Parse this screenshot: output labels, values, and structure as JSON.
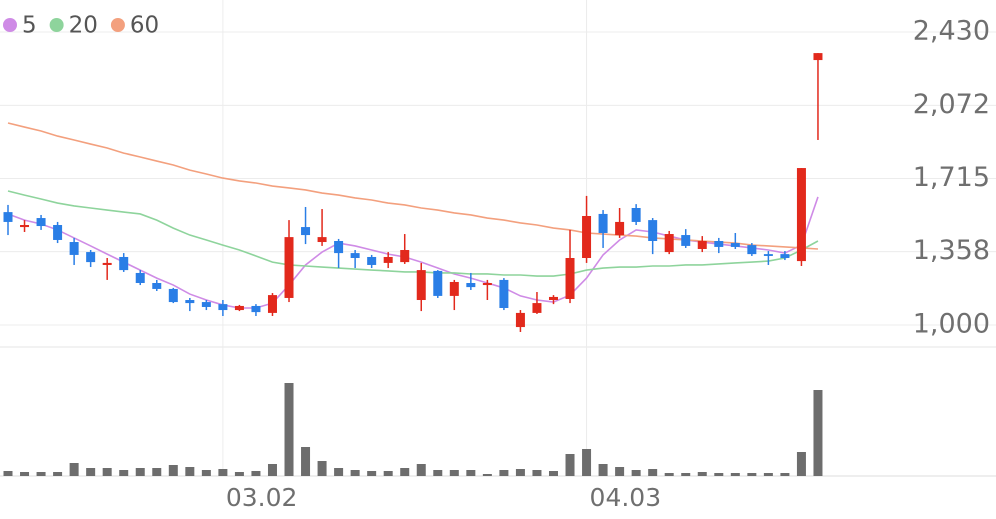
{
  "chart_data": {
    "type": "candlestick",
    "categories": [
      null,
      null,
      null,
      null,
      null,
      null,
      null,
      null,
      null,
      null,
      null,
      null,
      null,
      "03.02",
      null,
      null,
      null,
      null,
      null,
      null,
      null,
      null,
      null,
      null,
      null,
      null,
      null,
      null,
      null,
      null,
      null,
      null,
      null,
      null,
      null,
      "04.03",
      null,
      null,
      null,
      null,
      null,
      null,
      null,
      null,
      null,
      null,
      null,
      null,
      null,
      null
    ],
    "open": [
      1551,
      1478,
      1522,
      1488,
      1405,
      1356,
      1293,
      1332,
      1254,
      1205,
      1176,
      1122,
      1112,
      1102,
      1073,
      1093,
      1059,
      1132,
      1478,
      1405,
      1410,
      1351,
      1332,
      1303,
      1307,
      1122,
      1264,
      1142,
      1205,
      1195,
      1220,
      990,
      1059,
      1122,
      1127,
      1327,
      1542,
      1439,
      1571,
      1512,
      1356,
      1439,
      1371,
      1410,
      1400,
      1390,
      1346,
      1346,
      1312,
      2293
    ],
    "high": [
      1586,
      1512,
      1537,
      1503,
      1425,
      1366,
      1327,
      1351,
      1268,
      1220,
      1181,
      1132,
      1122,
      1122,
      1098,
      1102,
      1156,
      1512,
      1576,
      1566,
      1420,
      1366,
      1342,
      1356,
      1444,
      1303,
      1268,
      1220,
      1254,
      1220,
      1229,
      1073,
      1161,
      1146,
      1464,
      1630,
      1561,
      1571,
      1590,
      1522,
      1459,
      1468,
      1434,
      1425,
      1449,
      1400,
      1361,
      1361,
      1766,
      2327
    ],
    "low": [
      1439,
      1454,
      1464,
      1400,
      1293,
      1283,
      1220,
      1259,
      1195,
      1166,
      1107,
      1068,
      1073,
      1044,
      1068,
      1044,
      1044,
      1112,
      1395,
      1386,
      1278,
      1278,
      1278,
      1278,
      1298,
      1068,
      1132,
      1073,
      1171,
      1122,
      1073,
      966,
      1054,
      1102,
      1107,
      1303,
      1376,
      1425,
      1488,
      1346,
      1346,
      1376,
      1356,
      1351,
      1371,
      1337,
      1293,
      1317,
      1288,
      1903
    ],
    "close": [
      1503,
      1488,
      1483,
      1415,
      1342,
      1307,
      1303,
      1268,
      1205,
      1176,
      1112,
      1107,
      1088,
      1073,
      1093,
      1063,
      1146,
      1429,
      1439,
      1429,
      1351,
      1327,
      1293,
      1332,
      1366,
      1268,
      1142,
      1210,
      1185,
      1205,
      1083,
      1059,
      1107,
      1137,
      1327,
      1532,
      1449,
      1503,
      1503,
      1410,
      1444,
      1386,
      1410,
      1381,
      1381,
      1346,
      1337,
      1327,
      1766,
      2327
    ],
    "up_color": "#e2291c",
    "down_color": "#2a7ee6",
    "moving_averages": [
      {
        "name": "5",
        "color": "#cf8be6",
        "values": [
          1542,
          1512,
          1493,
          1464,
          1425,
          1386,
          1346,
          1307,
          1268,
          1229,
          1195,
          1151,
          1122,
          1098,
          1083,
          1083,
          1107,
          1195,
          1293,
          1356,
          1400,
          1386,
          1366,
          1346,
          1332,
          1307,
          1278,
          1249,
          1229,
          1205,
          1181,
          1142,
          1122,
          1112,
          1146,
          1229,
          1342,
          1415,
          1464,
          1454,
          1434,
          1415,
          1405,
          1395,
          1386,
          1376,
          1366,
          1351,
          1390,
          1625
        ]
      },
      {
        "name": "20",
        "color": "#8ed49c",
        "values": [
          1654,
          1634,
          1615,
          1595,
          1581,
          1571,
          1561,
          1551,
          1542,
          1512,
          1473,
          1439,
          1415,
          1390,
          1366,
          1337,
          1307,
          1293,
          1288,
          1283,
          1278,
          1273,
          1268,
          1264,
          1259,
          1259,
          1254,
          1254,
          1249,
          1249,
          1244,
          1244,
          1239,
          1239,
          1249,
          1268,
          1278,
          1283,
          1283,
          1288,
          1288,
          1293,
          1293,
          1298,
          1303,
          1307,
          1312,
          1327,
          1366,
          1410
        ]
      },
      {
        "name": "60",
        "color": "#f3a07e",
        "values": [
          1986,
          1966,
          1947,
          1922,
          1903,
          1883,
          1864,
          1839,
          1820,
          1800,
          1781,
          1756,
          1737,
          1717,
          1703,
          1693,
          1678,
          1669,
          1659,
          1644,
          1634,
          1620,
          1610,
          1595,
          1586,
          1571,
          1561,
          1547,
          1537,
          1522,
          1512,
          1498,
          1488,
          1473,
          1464,
          1449,
          1444,
          1439,
          1434,
          1425,
          1420,
          1415,
          1410,
          1405,
          1400,
          1390,
          1386,
          1381,
          1376,
          1371
        ]
      }
    ],
    "volume": [
      5,
      4,
      4,
      4,
      13,
      8,
      8,
      6,
      8,
      8,
      11,
      9,
      6,
      7,
      4,
      5,
      12,
      93,
      29,
      15,
      8,
      6,
      5,
      5,
      8,
      12,
      6,
      6,
      6,
      2,
      6,
      7,
      6,
      5,
      22,
      27,
      12,
      9,
      6,
      7,
      3,
      3,
      4,
      3,
      3,
      3,
      3,
      3,
      24,
      86
    ],
    "volume_color": "#6d6d6d",
    "volume_lim": [
      0,
      100
    ],
    "ylim": [
      900,
      2530
    ],
    "yticks": [
      {
        "value": 1000,
        "label": "1,000"
      },
      {
        "value": 1358,
        "label": "1,358"
      },
      {
        "value": 1715,
        "label": "1,715"
      },
      {
        "value": 2072,
        "label": "2,072"
      },
      {
        "value": 2430,
        "label": "2,430"
      }
    ],
    "grid": true
  }
}
